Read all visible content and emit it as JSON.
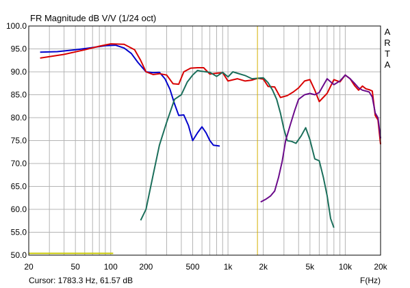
{
  "chart_data": {
    "type": "line",
    "title": "FR Magnitude dB V/V (1/24 oct)",
    "watermark": "ARTA",
    "cursor_text": "Cursor: 1783.3 Hz, 61.57 dB",
    "xunit_label": "F(Hz)",
    "x_scale": "log",
    "xlim": [
      20,
      20000
    ],
    "ylim": [
      50,
      100
    ],
    "grid": true,
    "x_ticks": [
      {
        "value": 20,
        "label": "20"
      },
      {
        "value": 50,
        "label": "50"
      },
      {
        "value": 100,
        "label": "100"
      },
      {
        "value": 200,
        "label": "200"
      },
      {
        "value": 500,
        "label": "500"
      },
      {
        "value": 1000,
        "label": "1k"
      },
      {
        "value": 2000,
        "label": "2k"
      },
      {
        "value": 5000,
        "label": "5k"
      },
      {
        "value": 10000,
        "label": "10k"
      },
      {
        "value": 20000,
        "label": "20k"
      }
    ],
    "y_ticks": [
      {
        "value": 100,
        "label": "100.0"
      },
      {
        "value": 95,
        "label": "95.0"
      },
      {
        "value": 90,
        "label": "90.0"
      },
      {
        "value": 85,
        "label": "85.0"
      },
      {
        "value": 80,
        "label": "80.0"
      },
      {
        "value": 75,
        "label": "75.0"
      },
      {
        "value": 70,
        "label": "70.0"
      },
      {
        "value": 65,
        "label": "65.0"
      },
      {
        "value": 60,
        "label": "60.0"
      },
      {
        "value": 55,
        "label": "55.0"
      },
      {
        "value": 50,
        "label": "50.0"
      }
    ],
    "cursor_x": 1783.3,
    "reference_line": {
      "x": [
        20,
        105
      ],
      "y": 50.4,
      "color": "#c8c800"
    },
    "series": [
      {
        "color": "#0000cc",
        "x": [
          25,
          35,
          50,
          70,
          90,
          110,
          130,
          150,
          170,
          200,
          230,
          260,
          290,
          320,
          350,
          380,
          420,
          460,
          500,
          550,
          600,
          650,
          700,
          750,
          800,
          850
        ],
        "y": [
          94.3,
          94.4,
          94.8,
          95.3,
          95.7,
          95.8,
          95.2,
          94.0,
          92.1,
          90.0,
          89.8,
          89.9,
          88.5,
          86.2,
          83.0,
          80.5,
          80.6,
          78.3,
          75.0,
          76.7,
          78.0,
          76.7,
          75.0,
          74.0,
          73.9,
          73.8
        ]
      },
      {
        "color": "#d80000",
        "x": [
          25,
          40,
          60,
          80,
          100,
          130,
          160,
          180,
          200,
          230,
          260,
          300,
          340,
          380,
          420,
          480,
          550,
          620,
          700,
          800,
          900,
          1000,
          1200,
          1400,
          1600,
          1800,
          2000,
          2200,
          2500,
          2800,
          3200,
          3600,
          4000,
          4500,
          5000,
          5500,
          6000,
          7000,
          8000,
          9000,
          10000,
          11000,
          12000,
          13000,
          14000,
          15000,
          16000,
          17000,
          18000,
          19000,
          20000
        ],
        "y": [
          93.0,
          93.8,
          94.8,
          95.6,
          96.1,
          96.0,
          94.8,
          92.5,
          90.0,
          89.4,
          89.6,
          89.3,
          87.4,
          87.3,
          90.0,
          90.8,
          90.9,
          90.9,
          89.5,
          89.7,
          89.8,
          88.0,
          88.5,
          88.0,
          88.2,
          88.6,
          88.4,
          86.8,
          86.7,
          84.4,
          84.8,
          85.6,
          86.5,
          88.0,
          88.3,
          86.0,
          83.5,
          85.3,
          88.3,
          87.8,
          89.3,
          88.5,
          87.0,
          86.0,
          86.9,
          86.3,
          86.1,
          85.8,
          80.5,
          79.5,
          74.2
        ]
      },
      {
        "color": "#1a6e5a",
        "x": [
          180,
          200,
          230,
          260,
          300,
          350,
          400,
          450,
          500,
          550,
          600,
          700,
          800,
          900,
          1000,
          1100,
          1200,
          1400,
          1600,
          1800,
          2000,
          2200,
          2400,
          2600,
          2800,
          3000,
          3200,
          3500,
          3800,
          4200,
          4600,
          5000,
          5500,
          6000,
          6500,
          7000,
          7500,
          8000
        ],
        "y": [
          57.6,
          60.0,
          67.5,
          74.0,
          79.0,
          84.0,
          85.0,
          87.8,
          89.3,
          90.3,
          90.1,
          89.9,
          89.0,
          89.9,
          88.9,
          90.0,
          89.7,
          89.2,
          88.5,
          88.6,
          88.7,
          87.6,
          86.0,
          84.0,
          81.0,
          77.5,
          75.0,
          74.8,
          74.4,
          76.0,
          77.8,
          75.2,
          71.0,
          70.6,
          67.0,
          63.0,
          58.0,
          56.0
        ]
      },
      {
        "color": "#6a0a8a",
        "x": [
          1900,
          2100,
          2300,
          2500,
          2700,
          2900,
          3100,
          3400,
          3700,
          4000,
          4500,
          5000,
          5500,
          6000,
          7000,
          8000,
          9000,
          10000,
          11000,
          12000,
          13000,
          14000,
          15000,
          16000,
          17000,
          18000,
          19000,
          20000
        ],
        "y": [
          61.6,
          62.2,
          62.9,
          64.0,
          67.0,
          70.5,
          75.0,
          78.5,
          81.5,
          84.0,
          85.0,
          85.3,
          85.0,
          85.5,
          88.5,
          87.2,
          88.0,
          89.3,
          88.5,
          87.5,
          86.5,
          86.0,
          85.8,
          85.6,
          84.5,
          81.0,
          80.0,
          75.5
        ]
      }
    ]
  }
}
